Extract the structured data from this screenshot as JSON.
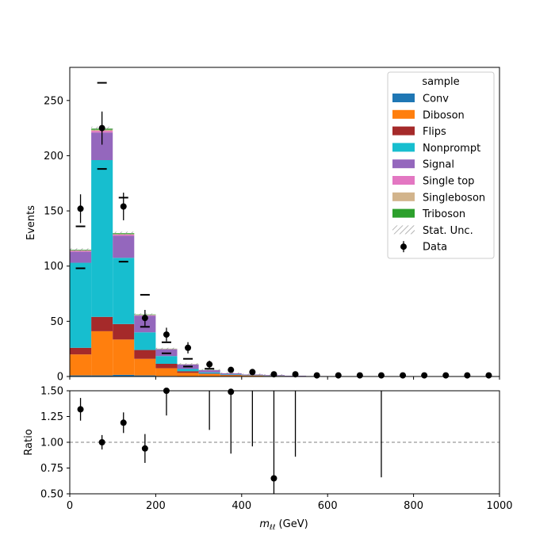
{
  "chart_data": {
    "type": "bar",
    "x_bin_edges": [
      0,
      50,
      100,
      150,
      200,
      250,
      300,
      350,
      400,
      450,
      500,
      550,
      600,
      650,
      700,
      750,
      800,
      850,
      900,
      950,
      1000
    ],
    "xlabel_main": "m",
    "xlabel_sub": "ℓℓ",
    "xlabel_unit": " (GeV)",
    "xlim": [
      0,
      1000
    ],
    "x_ticks": [
      0,
      200,
      400,
      600,
      800,
      1000
    ],
    "top": {
      "ylabel": "Events",
      "ylim": [
        0,
        280
      ],
      "y_ticks": [
        0,
        50,
        100,
        150,
        200,
        250
      ],
      "series": [
        {
          "name": "Conv",
          "color": "#1f77b4",
          "values": [
            1,
            1,
            1.5,
            1,
            0.5,
            0.3,
            0.2,
            0.1,
            0,
            0,
            0,
            0,
            0,
            0,
            0,
            0,
            0,
            0,
            0,
            0
          ]
        },
        {
          "name": "Diboson",
          "color": "#ff7f0e",
          "values": [
            19,
            40,
            32,
            15,
            7,
            3,
            2,
            1,
            0.8,
            0.5,
            0.3,
            0.2,
            0.1,
            0.1,
            0,
            0,
            0,
            0,
            0,
            0
          ]
        },
        {
          "name": "Flips",
          "color": "#a52a2a",
          "values": [
            6,
            13,
            14,
            8,
            4,
            1.5,
            0.5,
            0.3,
            0.2,
            0.1,
            0,
            0,
            0,
            0,
            0,
            0,
            0,
            0,
            0,
            0
          ]
        },
        {
          "name": "Nonprompt",
          "color": "#17becf",
          "values": [
            77,
            142,
            60,
            16,
            7,
            2,
            1,
            0.5,
            0.3,
            0.2,
            0.1,
            0,
            0,
            0,
            0,
            0,
            0,
            0,
            0,
            0
          ]
        },
        {
          "name": "Signal",
          "color": "#9467bd",
          "values": [
            10,
            25,
            20,
            15,
            6,
            4,
            2,
            1,
            0.5,
            0.5,
            0.3,
            0.2,
            0.1,
            0.1,
            0,
            0,
            0,
            0,
            0,
            0
          ]
        },
        {
          "name": "Single top",
          "color": "#e377c2",
          "values": [
            0.8,
            1.5,
            1,
            0.5,
            0.3,
            0.2,
            0.1,
            0,
            0,
            0,
            0,
            0,
            0,
            0,
            0,
            0,
            0,
            0,
            0,
            0
          ]
        },
        {
          "name": "Singleboson",
          "color": "#d2b48c",
          "values": [
            0.5,
            1,
            0.5,
            0.3,
            0.2,
            0.1,
            0,
            0,
            0,
            0,
            0,
            0,
            0,
            0,
            0,
            0,
            0,
            0,
            0,
            0
          ]
        },
        {
          "name": "Triboson",
          "color": "#2ca02c",
          "values": [
            0.5,
            1,
            0.8,
            0.4,
            0.2,
            0.1,
            0.1,
            0,
            0,
            0,
            0,
            0,
            0,
            0,
            0,
            0,
            0,
            0,
            0,
            0
          ]
        }
      ],
      "stat_unc_name": "Stat. Unc.",
      "data_name": "Data",
      "data_values": [
        152,
        225,
        154,
        53,
        38,
        26,
        11,
        6,
        4,
        2,
        2,
        1,
        1,
        1,
        1,
        1,
        1,
        1,
        1,
        1
      ],
      "data_errors": [
        13,
        15,
        12.5,
        7.3,
        6.2,
        5.1,
        3.3,
        2.4,
        2,
        1.4,
        1.4,
        1,
        1,
        1,
        1,
        1,
        1,
        1,
        1,
        1
      ],
      "markers": [
        {
          "bin": 0,
          "values": [
            136,
            98
          ]
        },
        {
          "bin": 1,
          "values": [
            266,
            188
          ]
        },
        {
          "bin": 2,
          "values": [
            162,
            104
          ]
        },
        {
          "bin": 3,
          "values": [
            74,
            45
          ]
        },
        {
          "bin": 4,
          "values": [
            31,
            21
          ]
        },
        {
          "bin": 5,
          "values": [
            16,
            9
          ]
        },
        {
          "bin": 6,
          "values": [
            7
          ]
        }
      ]
    },
    "bottom": {
      "ylabel": "Ratio",
      "ylim": [
        0.5,
        1.5
      ],
      "y_ticks": [
        "0.50",
        "0.75",
        "1.00",
        "1.25",
        "1.50"
      ],
      "reference_line": 1.0,
      "points": [
        {
          "x": 25,
          "y": 1.32,
          "err": 0.11
        },
        {
          "x": 75,
          "y": 1.0,
          "err": 0.07
        },
        {
          "x": 125,
          "y": 1.19,
          "err": 0.1
        },
        {
          "x": 175,
          "y": 0.94,
          "err": 0.14
        },
        {
          "x": 225,
          "y": 1.5,
          "err": 0.24
        },
        {
          "x": 325,
          "y": null,
          "err_low": 1.12,
          "err_high": 1.5
        },
        {
          "x": 375,
          "y": 1.49,
          "err": 0.6
        },
        {
          "x": 425,
          "y": null,
          "err_low": 0.96,
          "err_high": 1.5
        },
        {
          "x": 475,
          "y": 0.65,
          "err": 0.9
        },
        {
          "x": 525,
          "y": null,
          "err_low": 0.86,
          "err_high": 1.5
        },
        {
          "x": 725,
          "y": null,
          "err_low": 0.66,
          "err_high": 1.5
        }
      ]
    },
    "legend": {
      "title": "sample",
      "position": "top-right"
    }
  }
}
